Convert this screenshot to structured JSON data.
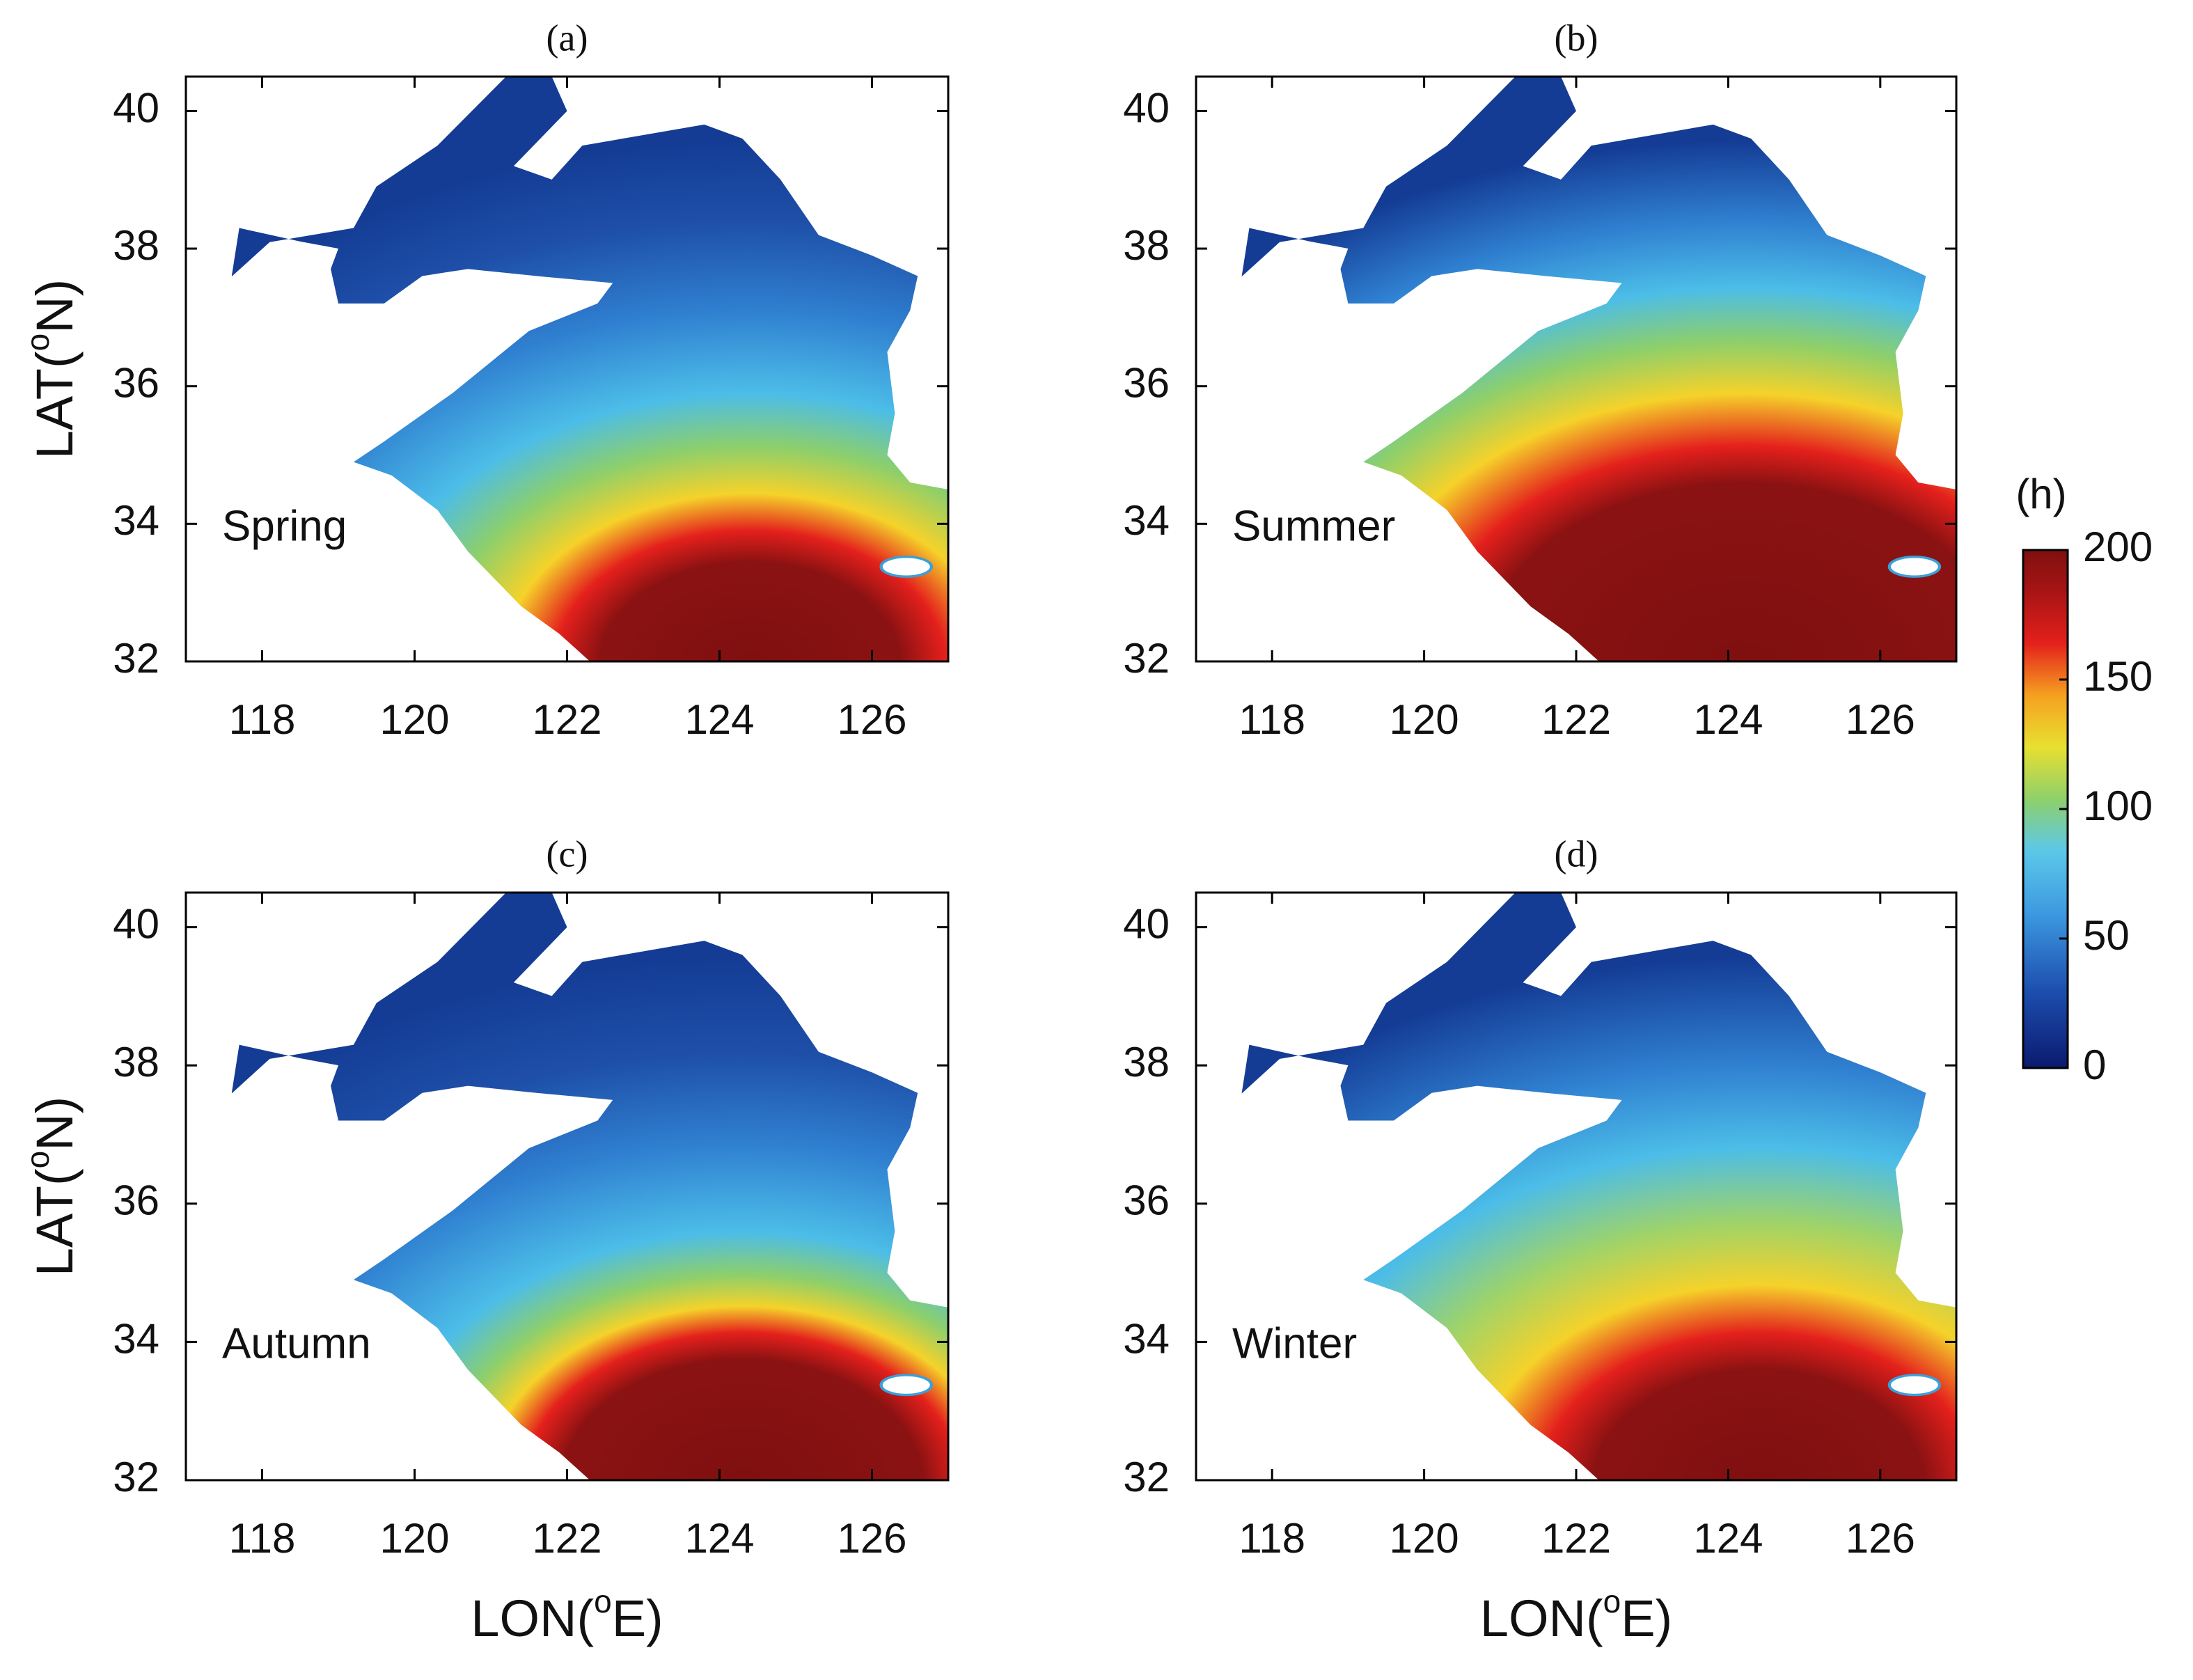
{
  "panels": [
    {
      "title": "(a)",
      "season": "Spring"
    },
    {
      "title": "(b)",
      "season": "Summer"
    },
    {
      "title": "(c)",
      "season": "Autumn"
    },
    {
      "title": "(d)",
      "season": "Winter"
    }
  ],
  "axes": {
    "xlim": [
      117,
      127
    ],
    "ylim": [
      32,
      40.5
    ],
    "xticks": [
      118,
      120,
      122,
      124,
      126
    ],
    "yticks": [
      32,
      34,
      36,
      38,
      40
    ],
    "xlabel": {
      "start": "LON(",
      "sup": "o",
      "end": "E)"
    },
    "ylabel": {
      "start": "LAT(",
      "sup": "o",
      "end": "N)"
    }
  },
  "colorbar": {
    "label": "(h)",
    "lim": [
      0,
      200
    ],
    "ticks": [
      0,
      50,
      100,
      150,
      200
    ]
  }
}
